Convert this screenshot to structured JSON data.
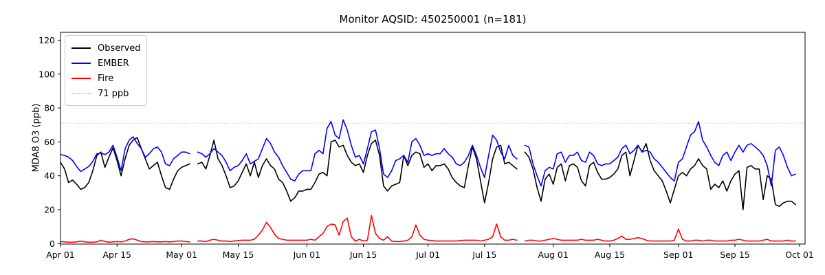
{
  "chart_data": {
    "type": "line",
    "title": "Monitor AQSID: 450250001 (n=181)",
    "ylabel": "MDA8 O3 (ppb)",
    "xlabel": "",
    "ylim": [
      0,
      125
    ],
    "grid": false,
    "y_ticks": [
      0,
      20,
      40,
      60,
      80,
      100,
      120
    ],
    "x_tick_labels": [
      "Apr 01",
      "Apr 15",
      "May 01",
      "May 15",
      "Jun 01",
      "Jun 15",
      "Jul 01",
      "Jul 15",
      "Aug 01",
      "Aug 15",
      "Sep 01",
      "Sep 15",
      "Oct 01"
    ],
    "x_tick_positions_days": [
      0,
      14,
      30,
      44,
      61,
      75,
      91,
      105,
      122,
      136,
      153,
      167,
      183
    ],
    "x_start_label": "Apr 01",
    "x_end_label": "Oct 01",
    "threshold": {
      "label": "71 ppb",
      "value": 71,
      "color": "#c9c9c9",
      "style": "dotted"
    },
    "legend": {
      "position": "upper left",
      "items": [
        {
          "label": "Observed",
          "color": "#000000",
          "style": "solid"
        },
        {
          "label": "EMBER",
          "color": "#0000ff",
          "style": "solid"
        },
        {
          "label": "Fire",
          "color": "#ff0000",
          "style": "solid"
        },
        {
          "label": "71 ppb",
          "color": "#c9c9c9",
          "style": "dotted"
        }
      ]
    },
    "series": [
      {
        "name": "Observed",
        "color": "#000000",
        "values": [
          48,
          44,
          36,
          37.5,
          35,
          32,
          33,
          36,
          43,
          52,
          54,
          45,
          51,
          56.5,
          49,
          40,
          50,
          58,
          61,
          62.5,
          56,
          50,
          44,
          46,
          48,
          40,
          33,
          32,
          38,
          43,
          45,
          46,
          47,
          null,
          47,
          48,
          44,
          52,
          61,
          50,
          46,
          40,
          33,
          34,
          37,
          42,
          47,
          40,
          48,
          39,
          46,
          50,
          46,
          44,
          38,
          36,
          31,
          25,
          27,
          31,
          31,
          32,
          32,
          36,
          41,
          42,
          40,
          60,
          61,
          57,
          58,
          52,
          48,
          46,
          47,
          42,
          52,
          59,
          61,
          52,
          34,
          31,
          34,
          35,
          36,
          52,
          46,
          52,
          54,
          53,
          45,
          47,
          43,
          46,
          46,
          47,
          44,
          39,
          36,
          34,
          33,
          46,
          57,
          50,
          37,
          24,
          36,
          50,
          57,
          58,
          47,
          48,
          46,
          44,
          null,
          54,
          51,
          44,
          33,
          25,
          38,
          41,
          35,
          45,
          47,
          37,
          46,
          47,
          45,
          37,
          34,
          46,
          48,
          42,
          38,
          38,
          39,
          41,
          44,
          52,
          54,
          40,
          49,
          58,
          54,
          59,
          49,
          43,
          40,
          37,
          31,
          24,
          32,
          40,
          42,
          40,
          44,
          46,
          50,
          46,
          44,
          32,
          35,
          33,
          37,
          31,
          37,
          41,
          43,
          20,
          45,
          46,
          44,
          44,
          26,
          40,
          38,
          23,
          22,
          24,
          25,
          25,
          23
        ]
      },
      {
        "name": "EMBER",
        "color": "#0000ff",
        "values": [
          52.5,
          52,
          51,
          49,
          45.5,
          42.5,
          44,
          45.5,
          48.5,
          53,
          53.5,
          52.5,
          54,
          58,
          51,
          43,
          56,
          61,
          63,
          59,
          56,
          51,
          53,
          56,
          57,
          54,
          47,
          46,
          50,
          52,
          54,
          54,
          53,
          null,
          54,
          53,
          51,
          53,
          56,
          54,
          52,
          48,
          43,
          45,
          46,
          49,
          53,
          47,
          48.5,
          50,
          56,
          62,
          59,
          54,
          51,
          46,
          42,
          38,
          37,
          41,
          43,
          43,
          43,
          53,
          55,
          53,
          68,
          72,
          64,
          62,
          73,
          67,
          58,
          51,
          52,
          47,
          56,
          66,
          67,
          56,
          41,
          39,
          43,
          49,
          50,
          52,
          48,
          60,
          62,
          58,
          52,
          53,
          52,
          53,
          53,
          56,
          53,
          51,
          47,
          46,
          48,
          52,
          58,
          52,
          45,
          39,
          52,
          64,
          61,
          54,
          50,
          58,
          52,
          50,
          null,
          58,
          57,
          47,
          40,
          34,
          43,
          45,
          44,
          53,
          54,
          48,
          52,
          52,
          54,
          49,
          48,
          54,
          52,
          47,
          46,
          47,
          47,
          49,
          51,
          56,
          58,
          53,
          55,
          58,
          54,
          55,
          54,
          50,
          48,
          45,
          42,
          39,
          37,
          48,
          50,
          57,
          64,
          66,
          72,
          61,
          57,
          52,
          48,
          46,
          52,
          54,
          49,
          54,
          58,
          54,
          58,
          59,
          57,
          55,
          52,
          46,
          34,
          55,
          57,
          52,
          45,
          40,
          41
        ]
      },
      {
        "name": "Fire",
        "color": "#ff0000",
        "values": [
          1.2,
          1,
          0.8,
          0.8,
          1,
          1.5,
          1,
          0.8,
          0.8,
          1,
          2,
          1.2,
          0.8,
          1,
          1.2,
          1,
          1.5,
          2.5,
          2.8,
          2,
          1.2,
          1,
          1,
          1.2,
          1,
          1,
          1.2,
          1,
          1.2,
          1.5,
          1.5,
          1.2,
          1,
          null,
          1.5,
          1.5,
          1.2,
          2,
          2.5,
          2,
          1.5,
          1.5,
          1.2,
          1.5,
          1.8,
          2,
          2,
          2,
          2.5,
          5,
          8,
          12.5,
          9.5,
          5.5,
          3,
          2.5,
          2,
          2,
          2,
          2,
          2,
          2,
          2.5,
          2,
          4,
          6,
          10,
          11.5,
          11,
          5,
          13,
          15,
          4,
          1.5,
          2.5,
          1.5,
          2,
          16.5,
          6,
          3,
          2,
          4,
          1.5,
          1.2,
          1.2,
          1.5,
          2,
          4,
          11,
          5,
          2.5,
          2,
          1.8,
          1.5,
          1.5,
          1.5,
          1.5,
          1.5,
          1.5,
          1.8,
          2,
          2,
          2,
          2,
          1.5,
          2,
          2.5,
          4,
          11.5,
          4,
          2,
          2,
          2.5,
          2,
          null,
          1.5,
          2,
          2,
          1.5,
          1.5,
          2,
          2.5,
          3,
          2.5,
          2,
          2,
          2,
          2,
          2,
          2.5,
          2,
          2,
          2,
          2.5,
          2,
          1.5,
          1.5,
          2,
          3,
          4.5,
          2.5,
          2.5,
          3,
          3.5,
          3,
          2,
          1.5,
          1.5,
          1.5,
          1.5,
          1.5,
          1.5,
          2,
          8.5,
          2.5,
          1.5,
          1.5,
          2,
          2,
          1.5,
          2,
          2,
          1.5,
          1.5,
          1.5,
          1.5,
          2,
          2,
          2.5,
          2,
          1.5,
          1.5,
          1.5,
          1.5,
          2,
          2.5,
          1.5,
          1.5,
          1.5,
          1.5,
          2,
          1.5,
          1.5
        ]
      }
    ]
  },
  "layout_colors": {
    "background": "#ffffff",
    "spine": "#000000",
    "tick_label": "#000000"
  }
}
